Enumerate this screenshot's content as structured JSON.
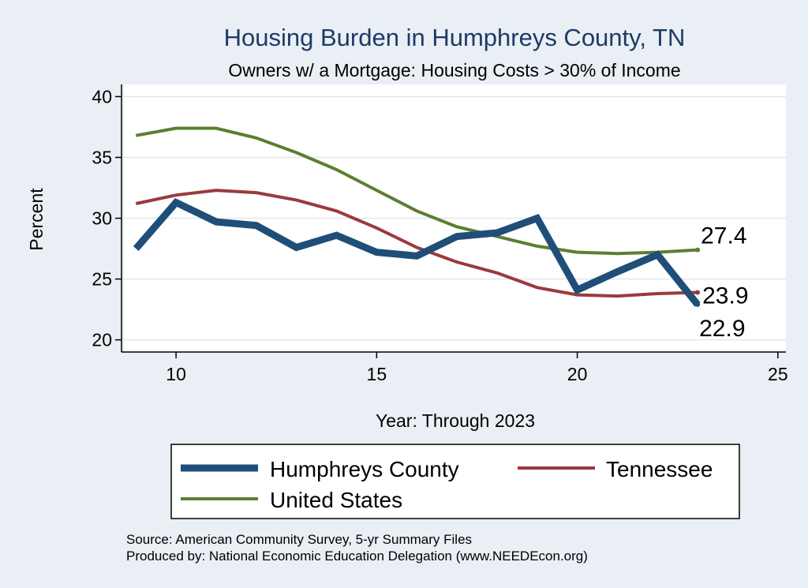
{
  "chart_data": {
    "type": "line",
    "title": "Housing Burden in Humphreys County, TN",
    "subtitle": "Owners w/ a Mortgage: Housing Costs > 30% of Income",
    "xlabel": "Year: Through 2023",
    "ylabel": "Percent",
    "xlim": [
      8.7,
      25.2
    ],
    "ylim": [
      19,
      41
    ],
    "xticks": [
      10,
      15,
      20,
      25
    ],
    "yticks": [
      20,
      25,
      30,
      35,
      40
    ],
    "grid": true,
    "legend_position": "bottom",
    "x": [
      9,
      10,
      11,
      12,
      13,
      14,
      15,
      16,
      17,
      18,
      19,
      20,
      21,
      22,
      23
    ],
    "series": [
      {
        "name": "Humphreys County",
        "color": "#1f4e79",
        "values": [
          27.5,
          31.3,
          29.7,
          29.4,
          27.6,
          28.6,
          27.2,
          26.9,
          28.5,
          28.8,
          30.0,
          24.1,
          25.6,
          27.0,
          22.9
        ],
        "end_label": "22.9"
      },
      {
        "name": "Tennessee",
        "color": "#9b3a3e",
        "values": [
          31.2,
          31.9,
          32.3,
          32.1,
          31.5,
          30.6,
          29.2,
          27.6,
          26.4,
          25.5,
          24.3,
          23.7,
          23.6,
          23.8,
          23.9
        ],
        "end_label": "23.9"
      },
      {
        "name": "United States",
        "color": "#5b7f2f",
        "values": [
          36.8,
          37.4,
          37.4,
          36.6,
          35.4,
          34.0,
          32.3,
          30.6,
          29.3,
          28.5,
          27.7,
          27.2,
          27.1,
          27.2,
          27.4
        ],
        "end_label": "27.4"
      }
    ]
  },
  "footer": {
    "source": "Source: American Community Survey, 5-yr Summary Files",
    "produced": "Produced by: National Economic Education Delegation (www.NEEDEcon.org)"
  }
}
